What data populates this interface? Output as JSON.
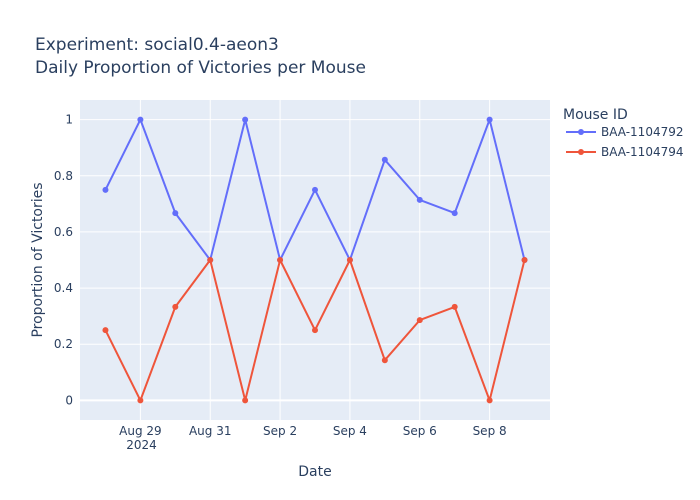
{
  "chart_data": {
    "type": "line",
    "title_line1": "Experiment: social0.4-aeon3",
    "title_line2": "Daily Proportion of Victories per Mouse",
    "xlabel": "Date",
    "ylabel": "Proportion of Victories",
    "legend_title": "Mouse ID",
    "year_label": "2024",
    "x": [
      "2024-08-28",
      "2024-08-29",
      "2024-08-30",
      "2024-08-31",
      "2024-09-01",
      "2024-09-02",
      "2024-09-03",
      "2024-09-04",
      "2024-09-05",
      "2024-09-06",
      "2024-09-07",
      "2024-09-08",
      "2024-09-09"
    ],
    "x_ticks": [
      {
        "date": "2024-08-29",
        "label": "Aug 29"
      },
      {
        "date": "2024-08-31",
        "label": "Aug 31"
      },
      {
        "date": "2024-09-02",
        "label": "Sep 2"
      },
      {
        "date": "2024-09-04",
        "label": "Sep 4"
      },
      {
        "date": "2024-09-06",
        "label": "Sep 6"
      },
      {
        "date": "2024-09-08",
        "label": "Sep 8"
      }
    ],
    "y_ticks": [
      0,
      0.2,
      0.4,
      0.6,
      0.8,
      1
    ],
    "y_tick_labels": [
      "0",
      "0.2",
      "0.4",
      "0.6",
      "0.8",
      "1"
    ],
    "xlim": [
      "2024-08-27T06:30",
      "2024-09-09T17:30"
    ],
    "ylim": [
      -0.07,
      1.07
    ],
    "series": [
      {
        "name": "BAA-1104792",
        "color": "#636efa",
        "values": [
          0.75,
          1.0,
          0.667,
          0.5,
          1.0,
          0.5,
          0.75,
          0.5,
          0.857,
          0.714,
          0.667,
          1.0,
          0.5
        ]
      },
      {
        "name": "BAA-1104794",
        "color": "#ef553b",
        "values": [
          0.25,
          0.0,
          0.333,
          0.5,
          0.0,
          0.5,
          0.25,
          0.5,
          0.143,
          0.286,
          0.333,
          0.0,
          0.5
        ]
      }
    ]
  }
}
